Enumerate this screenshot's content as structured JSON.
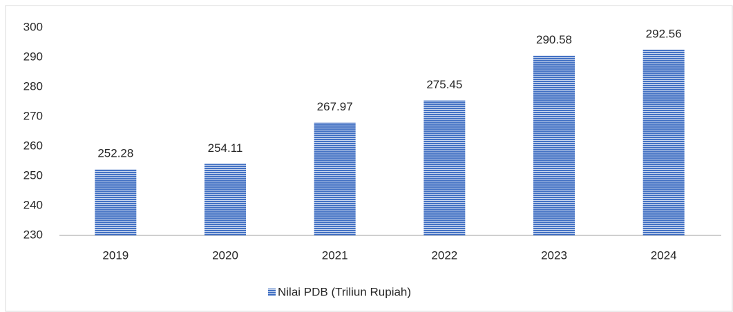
{
  "chart_data": {
    "type": "bar",
    "categories": [
      "2019",
      "2020",
      "2021",
      "2022",
      "2023",
      "2024"
    ],
    "series": [
      {
        "name": "Nilai PDB (Triliun Rupiah)",
        "color": "#4472c4",
        "values": [
          252.28,
          254.11,
          267.97,
          275.45,
          290.58,
          292.56
        ]
      }
    ],
    "ylim": [
      230,
      300
    ],
    "yticks": [
      230,
      240,
      250,
      260,
      270,
      280,
      290,
      300
    ],
    "grid": false,
    "legend": "bottom",
    "data_labels": true
  }
}
